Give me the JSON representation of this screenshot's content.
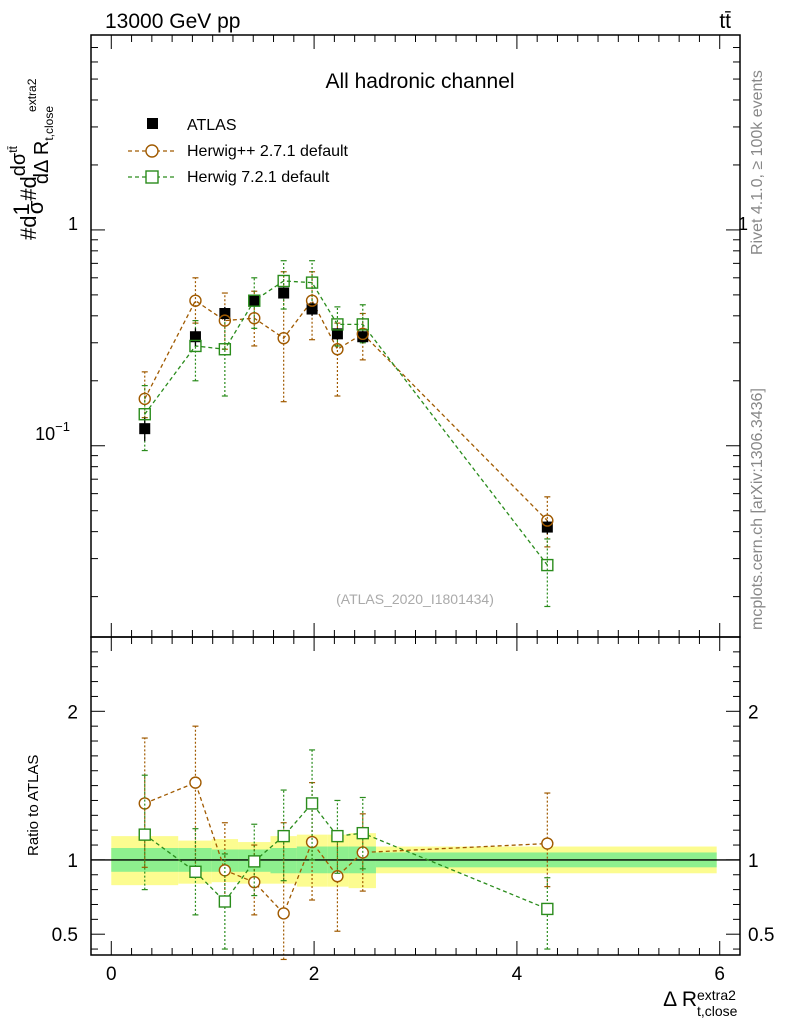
{
  "header": {
    "left": "13000 GeV pp",
    "right": "tt̄"
  },
  "side": {
    "top": "Rivet 4.1.0, ≥ 100k events",
    "bottom": "mcplots.cern.ch [arXiv:1306.3436]"
  },
  "colors": {
    "atlas": "#000000",
    "herwigpp": "#a05a00",
    "herwig7": "#2a8c1c",
    "band_inner": "#8ef08e",
    "band_outer": "#fcfc90"
  },
  "chart_data": [
    {
      "type": "scatter",
      "title": "All hadronic channel",
      "watermark": "(ATLAS_2020_I1801434)",
      "ylabel_parts": [
        "#d",
        "1",
        "σ",
        "#d",
        "dσ",
        "tt̄",
        "dΔ R",
        "t,close",
        "extra2"
      ],
      "yscale": "log",
      "ylim": [
        0.013,
        8.0
      ],
      "y_tick_labels": [
        "1",
        "10",
        "−1"
      ],
      "xlim": [
        -0.2,
        6.2
      ],
      "legend": {
        "placement": "top-left",
        "entries": [
          "ATLAS",
          "Herwig++ 2.7.1 default",
          "Herwig 7.2.1 default"
        ]
      },
      "series": [
        {
          "name": "ATLAS",
          "marker": "filled-square",
          "x": [
            0.33,
            0.83,
            1.12,
            1.41,
            1.7,
            1.98,
            2.23,
            2.48,
            4.3
          ],
          "xerr": [
            0.17,
            0.16,
            0.13,
            0.16,
            0.13,
            0.13,
            0.12,
            0.13,
            1.67
          ],
          "y": [
            0.12,
            0.32,
            0.41,
            0.47,
            0.51,
            0.43,
            0.33,
            0.32,
            0.042
          ],
          "y_lo": [
            0.105,
            0.29,
            0.38,
            0.44,
            0.48,
            0.4,
            0.31,
            0.3,
            0.039
          ],
          "y_hi": [
            0.135,
            0.35,
            0.44,
            0.5,
            0.54,
            0.46,
            0.35,
            0.34,
            0.045
          ]
        },
        {
          "name": "Herwig++ 2.7.1 default",
          "marker": "open-circle",
          "line": "dashed",
          "x": [
            0.33,
            0.83,
            1.12,
            1.41,
            1.7,
            1.98,
            2.23,
            2.48,
            4.3
          ],
          "y": [
            0.165,
            0.47,
            0.38,
            0.39,
            0.315,
            0.47,
            0.28,
            0.33,
            0.045
          ],
          "y_lo": [
            0.135,
            0.37,
            0.28,
            0.29,
            0.16,
            0.31,
            0.17,
            0.25,
            0.034
          ],
          "y_hi": [
            0.22,
            0.6,
            0.51,
            0.52,
            0.64,
            0.64,
            0.37,
            0.41,
            0.058
          ]
        },
        {
          "name": "Herwig 7.2.1 default",
          "marker": "open-square",
          "line": "dashed",
          "x": [
            0.33,
            0.83,
            1.12,
            1.41,
            1.7,
            1.98,
            2.23,
            2.48,
            4.3
          ],
          "y": [
            0.14,
            0.29,
            0.28,
            0.47,
            0.58,
            0.57,
            0.365,
            0.365,
            0.028
          ],
          "y_lo": [
            0.095,
            0.2,
            0.17,
            0.35,
            0.43,
            0.43,
            0.29,
            0.3,
            0.018
          ],
          "y_hi": [
            0.19,
            0.38,
            0.4,
            0.6,
            0.72,
            0.72,
            0.44,
            0.45,
            0.037
          ]
        }
      ]
    },
    {
      "type": "scatter",
      "ylabel": "Ratio to ATLAS",
      "xlabel": "Δ R",
      "xlabel_sub": "t,close",
      "xlabel_sup": "extra2",
      "ylim": [
        0.36,
        2.5
      ],
      "y_ticks": [
        0.5,
        1,
        2
      ],
      "y_tick_labels": [
        "0.5",
        "1",
        "2"
      ],
      "xlim": [
        -0.2,
        6.2
      ],
      "x_ticks": [
        0,
        2,
        4,
        6
      ],
      "x_tick_labels": [
        "0",
        "2",
        "4",
        "6"
      ],
      "bands": {
        "edges": [
          0.0,
          0.66,
          0.99,
          1.25,
          1.57,
          1.83,
          2.13,
          2.34,
          2.61,
          5.97
        ],
        "inner_lo": [
          0.92,
          0.92,
          0.92,
          0.92,
          0.91,
          0.91,
          0.91,
          0.91,
          0.95
        ],
        "inner_hi": [
          1.08,
          1.08,
          1.07,
          1.07,
          1.08,
          1.09,
          1.09,
          1.09,
          1.05
        ],
        "outer_lo": [
          0.83,
          0.84,
          0.85,
          0.84,
          0.84,
          0.82,
          0.82,
          0.81,
          0.91
        ],
        "outer_hi": [
          1.16,
          1.13,
          1.14,
          1.12,
          1.16,
          1.17,
          1.17,
          1.18,
          1.09
        ]
      },
      "series": [
        {
          "name": "Herwig++ 2.7.1 default",
          "x": [
            0.33,
            0.83,
            1.12,
            1.41,
            1.7,
            1.98,
            2.23,
            2.48,
            4.3
          ],
          "y": [
            1.38,
            1.52,
            0.93,
            0.85,
            0.64,
            1.12,
            0.89,
            1.05,
            1.11
          ],
          "y_lo": [
            0.95,
            0.92,
            0.69,
            0.63,
            0.33,
            0.73,
            0.52,
            0.79,
            0.82
          ],
          "y_hi": [
            1.82,
            1.9,
            1.25,
            1.1,
            1.25,
            1.52,
            1.14,
            1.31,
            1.45
          ]
        },
        {
          "name": "Herwig 7.2.1 default",
          "x": [
            0.33,
            0.83,
            1.12,
            1.41,
            1.7,
            1.98,
            2.23,
            2.48,
            4.3
          ],
          "y": [
            1.17,
            0.92,
            0.72,
            0.99,
            1.16,
            1.38,
            1.16,
            1.18,
            0.67
          ],
          "y_lo": [
            0.8,
            0.63,
            0.4,
            0.76,
            0.86,
            1.0,
            0.91,
            0.94,
            0.4
          ],
          "y_hi": [
            1.57,
            1.21,
            1.04,
            1.24,
            1.47,
            1.74,
            1.4,
            1.42,
            0.88
          ]
        }
      ]
    }
  ]
}
